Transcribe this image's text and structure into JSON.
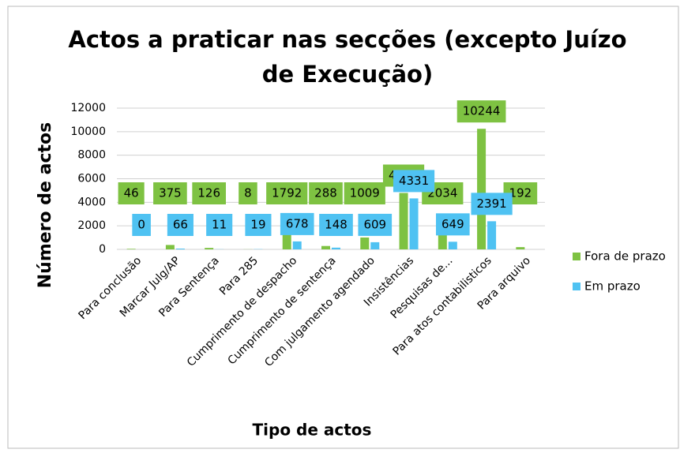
{
  "chart_data": {
    "type": "bar",
    "title": "Actos a praticar nas secções (excepto Juízo de Execução)",
    "x_label": "Tipo de actos",
    "y_label": "Número de actos",
    "categories": [
      "Para conclusão",
      "Marcar Julg/AP",
      "Para Sentença",
      "Para 285",
      "Cumprimento de despacho",
      "Cumprimento de sentença",
      "Com julgamento agendado",
      "Insistências",
      "Pesquisas de...",
      "Para atos contabilisticos",
      "Para arquivo"
    ],
    "series": [
      {
        "name": "Fora de prazo",
        "color": "#7ec242",
        "values": [
          46,
          375,
          126,
          8,
          1792,
          288,
          1009,
          4793,
          2034,
          10244,
          192
        ]
      },
      {
        "name": "Em prazo",
        "color": "#4fc2f2",
        "values": [
          0,
          66,
          11,
          19,
          678,
          148,
          609,
          4331,
          649,
          2391,
          null
        ]
      }
    ],
    "ylim": [
      0,
      12000
    ],
    "yticks": [
      0,
      2000,
      4000,
      6000,
      8000,
      10000,
      12000
    ],
    "grid": true,
    "legend": "right"
  }
}
